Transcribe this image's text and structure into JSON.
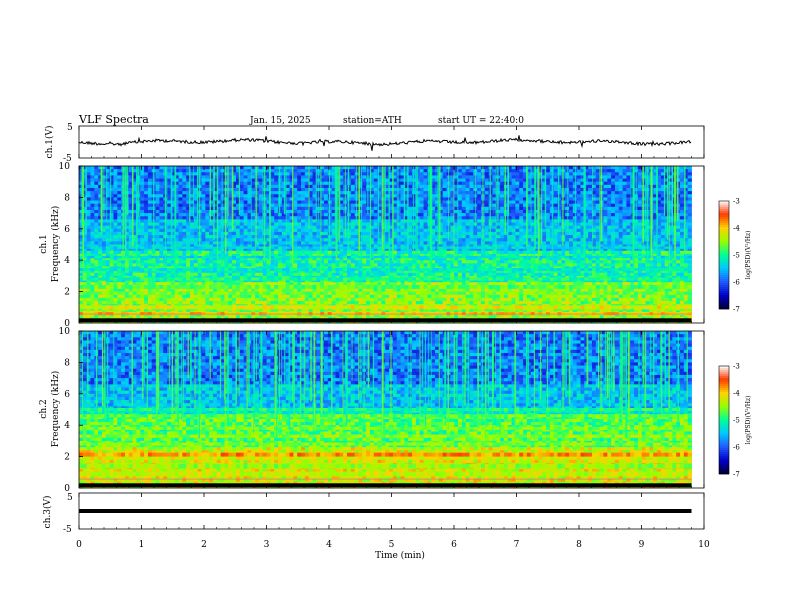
{
  "header": {
    "title": "VLF  Spectra",
    "date": "Jan.  15,  2025",
    "station": "station=ATH",
    "start_ut": "start  UT  =    22:40:0"
  },
  "chart_data": {
    "type": "heatmap",
    "x_axis": {
      "label": "Time  (min)",
      "range": [
        0,
        10
      ],
      "ticks": [
        "0",
        "1",
        "2",
        "3",
        "4",
        "5",
        "6",
        "7",
        "8",
        "9",
        "10"
      ]
    },
    "panels": [
      {
        "id": "ch1-waveform",
        "type": "line",
        "ylabel": "ch.1(V)",
        "yrange": [
          -5,
          5
        ],
        "yticks": [
          "5",
          "-5"
        ]
      },
      {
        "id": "ch1-spectrogram",
        "type": "heatmap",
        "ylabel_top": "ch.1",
        "ylabel": "Frequency  (kHz)",
        "yrange": [
          0,
          10
        ],
        "yticks": [
          "0",
          "2",
          "4",
          "6",
          "8",
          "10"
        ],
        "colorbar": {
          "label": "log(PSD)(V²/Hz)",
          "range": [
            -7,
            -3
          ],
          "ticks": [
            "-3",
            "-4",
            "-5",
            "-6",
            "-7"
          ]
        }
      },
      {
        "id": "ch2-spectrogram",
        "type": "heatmap",
        "ylabel_top": "ch.2",
        "ylabel": "Frequency  (kHz)",
        "yrange": [
          0,
          10
        ],
        "yticks": [
          "0",
          "2",
          "4",
          "6",
          "8",
          "10"
        ],
        "colorbar": {
          "label": "log(PSD)(V²/Hz)",
          "range": [
            -7,
            -3
          ],
          "ticks": [
            "-3",
            "-4",
            "-5",
            "-6",
            "-7"
          ]
        }
      },
      {
        "id": "ch3-waveform",
        "type": "line",
        "ylabel": "ch.3(V)",
        "yrange": [
          -5,
          5
        ],
        "yticks": [
          "5",
          "-5"
        ]
      }
    ],
    "data_end_min": 9.8,
    "colormap": [
      "#000033",
      "#0000c8",
      "#1e5aff",
      "#00c8ff",
      "#00ff96",
      "#96ff00",
      "#ffd200",
      "#ff3c00",
      "#ffffff"
    ]
  }
}
